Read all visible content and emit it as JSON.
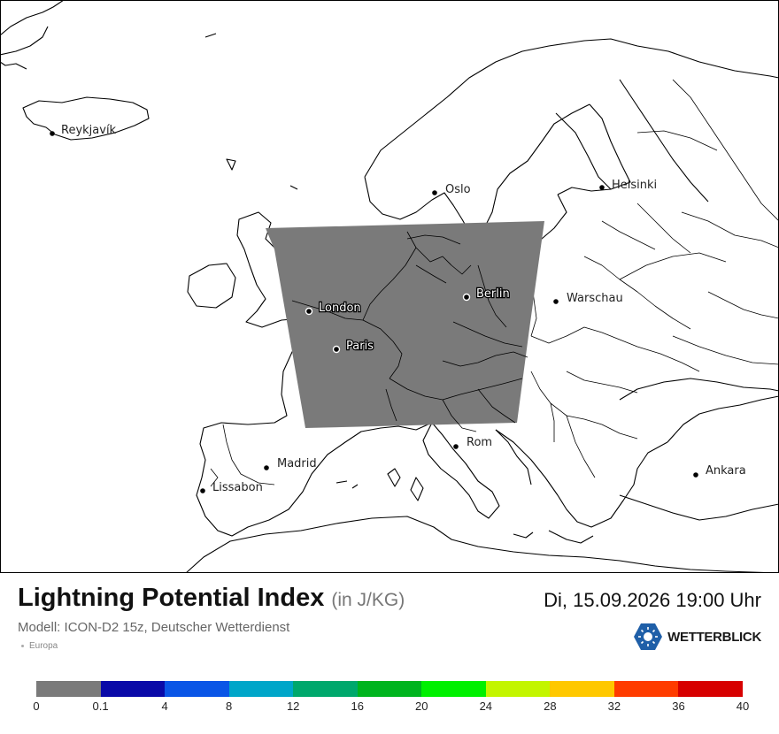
{
  "map": {
    "cities": [
      {
        "name": "Reykjavík",
        "on_overlay": false
      },
      {
        "name": "Oslo",
        "on_overlay": false
      },
      {
        "name": "Helsinki",
        "on_overlay": false
      },
      {
        "name": "London",
        "on_overlay": true
      },
      {
        "name": "Berlin",
        "on_overlay": true
      },
      {
        "name": "Warschau",
        "on_overlay": false
      },
      {
        "name": "Paris",
        "on_overlay": true
      },
      {
        "name": "Madrid",
        "on_overlay": false
      },
      {
        "name": "Lissabon",
        "on_overlay": false
      },
      {
        "name": "Rom",
        "on_overlay": false
      },
      {
        "name": "Ankara",
        "on_overlay": false
      }
    ],
    "domain_fill_value": "0"
  },
  "header": {
    "title": "Lightning Potential Index",
    "unit": "(in J/KG)",
    "datetime": "Di, 15.09.2026 19:00 Uhr",
    "model": "Modell: ICON-D2 15z, Deutscher Wetterdienst",
    "region": "Europa"
  },
  "brand": {
    "name": "WETTERBLICK",
    "color": "#1f5fa8"
  },
  "legend": {
    "ticks": [
      "0",
      "0.1",
      "4",
      "8",
      "12",
      "16",
      "20",
      "24",
      "28",
      "32",
      "36",
      "40"
    ],
    "colors": [
      "#7a7a7a",
      "#0a0aa8",
      "#0a55e6",
      "#00a6c9",
      "#00a86c",
      "#00b41e",
      "#00f000",
      "#c3f500",
      "#ffc800",
      "#ff3c00",
      "#d70000"
    ]
  },
  "colors": {
    "land": "#ffffff",
    "border": "#000000",
    "overlay": "#7a7a7a"
  }
}
